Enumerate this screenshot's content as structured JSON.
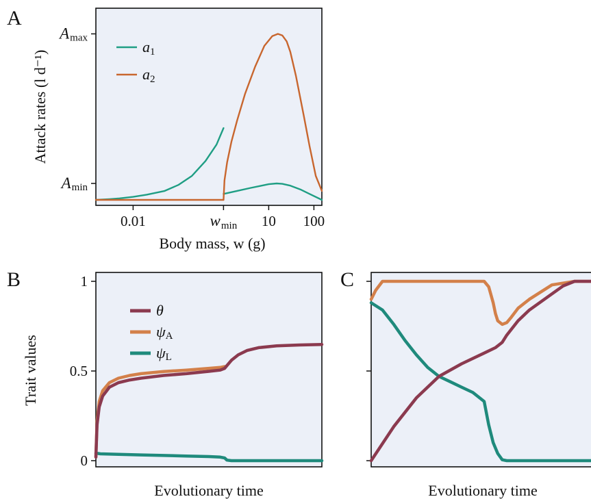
{
  "colors": {
    "theta": "#8b3a4f",
    "psiA": "#d3804a",
    "psiL": "#1f8a7c",
    "a1": "#1f9e84",
    "a2": "#c8662e",
    "panel_bg": "#ecf0f8"
  },
  "chart_data": [
    {
      "id": "A",
      "type": "line",
      "panel_label": "A",
      "xlabel": "Body mass, w (g)",
      "ylabel": "Attack rates (l d⁻¹)",
      "x_scale": "log",
      "xlim": [
        0.0015,
        150
      ],
      "ylim": [
        -0.11,
        1.08
      ],
      "x_ticks": [
        {
          "value": 0.01,
          "label": "0.01"
        },
        {
          "value": 1,
          "label": "w",
          "subscript": "min"
        },
        {
          "value": 10,
          "label": "10"
        },
        {
          "value": 100,
          "label": "100"
        }
      ],
      "y_ticks": [
        {
          "value": 0,
          "label": "A",
          "subscript": "min"
        },
        {
          "value": 1,
          "label": "A",
          "subscript": "max"
        }
      ],
      "legend": [
        "a1",
        "a2"
      ],
      "legend_labels": [
        {
          "main": "a",
          "sub": "1"
        },
        {
          "main": "a",
          "sub": "2"
        }
      ],
      "series": [
        {
          "name": "a1",
          "segments": [
            {
              "x": [
                0.0015,
                0.003,
                0.005,
                0.01,
                0.02,
                0.05,
                0.1,
                0.2,
                0.4,
                0.7,
                1
              ],
              "y": [
                -0.11,
                -0.105,
                -0.1,
                -0.09,
                -0.075,
                -0.05,
                -0.01,
                0.05,
                0.15,
                0.26,
                0.37
              ]
            },
            {
              "x": [
                1,
                2,
                4,
                7,
                10,
                15,
                20,
                30,
                50,
                80,
                150
              ],
              "y": [
                -0.07,
                -0.05,
                -0.03,
                -0.015,
                -0.005,
                0.0,
                -0.003,
                -0.015,
                -0.04,
                -0.07,
                -0.11
              ]
            }
          ]
        },
        {
          "name": "a2",
          "segments": [
            {
              "x": [
                0.0015,
                0.01,
                0.1,
                1
              ],
              "y": [
                -0.11,
                -0.11,
                -0.11,
                -0.11
              ]
            },
            {
              "x": [
                1,
                1.05,
                1.2,
                1.5,
                2,
                3,
                5,
                8,
                12,
                16,
                20,
                25,
                30,
                40,
                60,
                80,
                110,
                150
              ],
              "y": [
                -0.11,
                0.02,
                0.14,
                0.28,
                0.42,
                0.6,
                0.78,
                0.92,
                0.985,
                1.0,
                0.99,
                0.95,
                0.88,
                0.72,
                0.45,
                0.25,
                0.05,
                -0.05
              ]
            }
          ]
        }
      ]
    },
    {
      "id": "B",
      "type": "line",
      "panel_label": "B",
      "xlabel": "Evolutionary time",
      "ylabel": "Trait values",
      "xlim": [
        0,
        1
      ],
      "ylim": [
        0,
        1
      ],
      "y_ticks": [
        {
          "value": 0,
          "label": "0"
        },
        {
          "value": 0.5,
          "label": "0.5"
        },
        {
          "value": 1,
          "label": "1"
        }
      ],
      "legend": [
        "theta",
        "psiA",
        "psiL"
      ],
      "legend_labels": [
        {
          "main": "θ",
          "sub": ""
        },
        {
          "main": "ψ",
          "sub": "A"
        },
        {
          "main": "ψ",
          "sub": "L"
        }
      ],
      "series": [
        {
          "name": "theta",
          "x": [
            0,
            0.005,
            0.015,
            0.03,
            0.06,
            0.1,
            0.15,
            0.2,
            0.3,
            0.4,
            0.5,
            0.55,
            0.57,
            0.58,
            0.6,
            0.63,
            0.67,
            0.72,
            0.8,
            0.9,
            1.0
          ],
          "y": [
            0.02,
            0.2,
            0.3,
            0.36,
            0.41,
            0.435,
            0.45,
            0.46,
            0.475,
            0.485,
            0.498,
            0.505,
            0.515,
            0.53,
            0.56,
            0.59,
            0.615,
            0.63,
            0.64,
            0.645,
            0.648
          ]
        },
        {
          "name": "psiA",
          "x": [
            0,
            0.005,
            0.015,
            0.03,
            0.06,
            0.1,
            0.15,
            0.2,
            0.3,
            0.4,
            0.5,
            0.55,
            0.57
          ],
          "y": [
            0.02,
            0.22,
            0.33,
            0.39,
            0.435,
            0.46,
            0.475,
            0.485,
            0.497,
            0.505,
            0.515,
            0.52,
            0.525
          ]
        },
        {
          "name": "psiL",
          "x": [
            0,
            0.02,
            0.1,
            0.2,
            0.3,
            0.4,
            0.5,
            0.55,
            0.57,
            0.58,
            0.6,
            0.8,
            1.0
          ],
          "y": [
            0.042,
            0.038,
            0.035,
            0.032,
            0.029,
            0.026,
            0.023,
            0.02,
            0.015,
            0.003,
            0.0,
            0.0,
            0.0
          ]
        }
      ]
    },
    {
      "id": "C",
      "type": "line",
      "panel_label": "C",
      "xlabel": "Evolutionary time",
      "ylabel": "",
      "xlim": [
        0,
        1
      ],
      "ylim": [
        0,
        1
      ],
      "y_ticks": [
        {
          "value": 0,
          "label": ""
        },
        {
          "value": 0.5,
          "label": ""
        },
        {
          "value": 1,
          "label": ""
        }
      ],
      "series": [
        {
          "name": "theta",
          "x": [
            0,
            0.1,
            0.2,
            0.3,
            0.4,
            0.5,
            0.55,
            0.58,
            0.6,
            0.65,
            0.7,
            0.8,
            0.85,
            0.9,
            1.0
          ],
          "y": [
            0.0,
            0.19,
            0.35,
            0.47,
            0.54,
            0.6,
            0.63,
            0.66,
            0.7,
            0.78,
            0.84,
            0.93,
            0.975,
            1.0,
            1.0
          ]
        },
        {
          "name": "psiA",
          "x": [
            0,
            0.02,
            0.05,
            0.1,
            0.2,
            0.3,
            0.4,
            0.5,
            0.52,
            0.54,
            0.55,
            0.56,
            0.58,
            0.6,
            0.62,
            0.65,
            0.7,
            0.8,
            0.9,
            1.0
          ],
          "y": [
            0.9,
            0.95,
            1.0,
            1.0,
            1.0,
            1.0,
            1.0,
            1.0,
            0.97,
            0.88,
            0.82,
            0.78,
            0.76,
            0.77,
            0.8,
            0.85,
            0.9,
            0.98,
            1.0,
            1.0
          ]
        },
        {
          "name": "psiL",
          "x": [
            0,
            0.05,
            0.1,
            0.15,
            0.2,
            0.25,
            0.3,
            0.35,
            0.4,
            0.45,
            0.5,
            0.52,
            0.54,
            0.56,
            0.58,
            0.6,
            0.62,
            0.7,
            1.0
          ],
          "y": [
            0.88,
            0.84,
            0.76,
            0.67,
            0.59,
            0.52,
            0.47,
            0.44,
            0.41,
            0.38,
            0.33,
            0.2,
            0.1,
            0.04,
            0.005,
            0.0,
            0.0,
            0.0,
            0.0
          ]
        }
      ]
    }
  ]
}
